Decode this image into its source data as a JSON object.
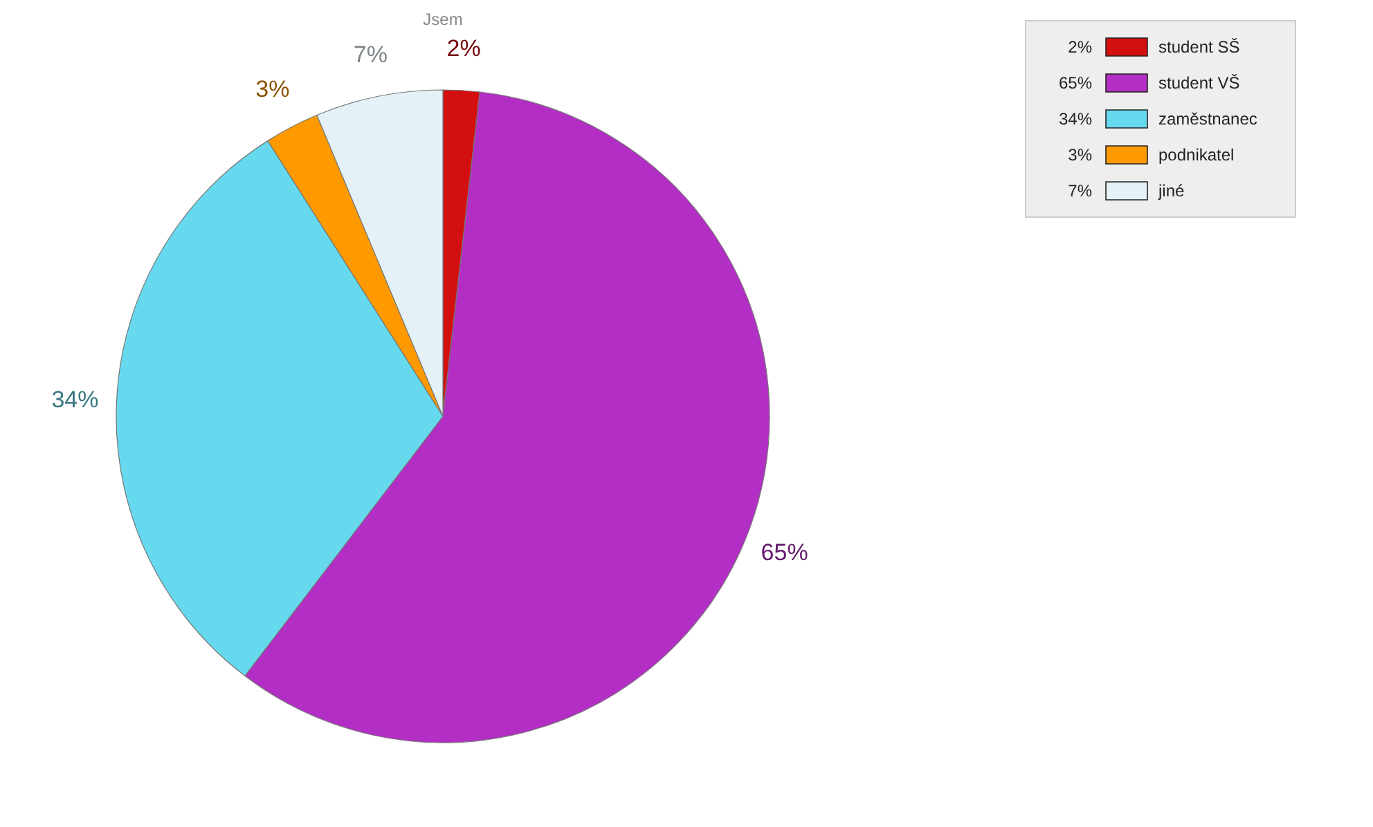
{
  "chart_data": {
    "type": "pie",
    "title": "Jsem",
    "categories": [
      "student SŠ",
      "student VŠ",
      "zaměstnanec",
      "podnikatel",
      "jiné"
    ],
    "values": [
      2,
      65,
      34,
      3,
      7
    ],
    "value_labels": [
      "2%",
      "65%",
      "34%",
      "3%",
      "7%"
    ],
    "colors": [
      "#d40f0f",
      "#b22ec4",
      "#66d9ee",
      "#ff9900",
      "#e4f2f8"
    ],
    "legend": "top right"
  }
}
